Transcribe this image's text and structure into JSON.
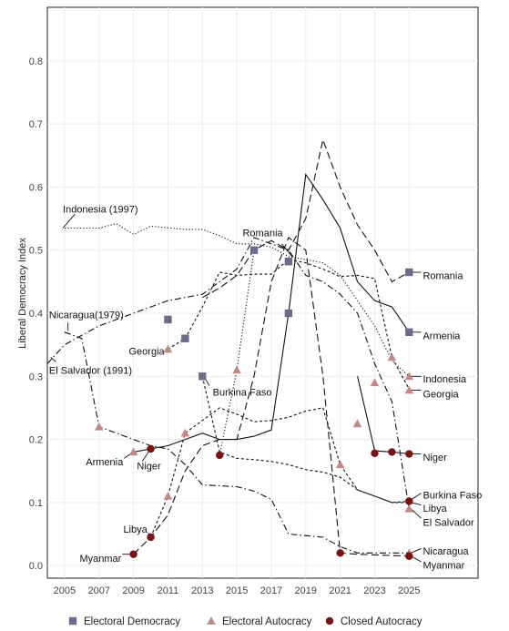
{
  "chart_data": {
    "type": "line",
    "ylabel": "Liberal Democracy Index",
    "xlabel": "",
    "xlim": [
      2004,
      2029
    ],
    "ylim": [
      -0.02,
      0.885
    ],
    "xticks": [
      "2005",
      "2007",
      "2009",
      "2011",
      "2013",
      "2015",
      "2017",
      "2019",
      "2021",
      "2023",
      "2025"
    ],
    "yticks": [
      "0.0",
      "0.1",
      "0.2",
      "0.3",
      "0.4",
      "0.5",
      "0.6",
      "0.7",
      "0.8"
    ],
    "grid": true,
    "legend_position": "bottom",
    "legend": [
      {
        "label": "Electoral Democracy",
        "marker": "square",
        "color": "#6b6b8c"
      },
      {
        "label": "Electoral Autocracy",
        "marker": "triangle",
        "color": "#c08a84"
      },
      {
        "label": "Closed Autocracy",
        "marker": "circle",
        "color": "#7a1414"
      }
    ],
    "series": [
      {
        "name": "Indonesia",
        "dash": "1.2,2.2",
        "points": [
          [
            2005,
            0.535
          ],
          [
            2007,
            0.535
          ],
          [
            2008,
            0.542
          ],
          [
            2009,
            0.525
          ],
          [
            2010,
            0.538
          ],
          [
            2012,
            0.533
          ],
          [
            2013,
            0.533
          ],
          [
            2014,
            0.523
          ],
          [
            2015,
            0.51
          ],
          [
            2016,
            0.51
          ],
          [
            2017,
            0.505
          ],
          [
            2018,
            0.49
          ],
          [
            2019,
            0.485
          ],
          [
            2020,
            0.48
          ],
          [
            2021,
            0.46
          ],
          [
            2022,
            0.42
          ],
          [
            2023,
            0.38
          ],
          [
            2024,
            0.325
          ],
          [
            2025,
            0.3
          ]
        ]
      },
      {
        "name": "Romania",
        "dash": "8,4",
        "points": [
          [
            2013,
            0.425
          ],
          [
            2014,
            0.44
          ],
          [
            2015,
            0.46
          ],
          [
            2016,
            0.5
          ],
          [
            2017,
            0.515
          ],
          [
            2018,
            0.5
          ],
          [
            2019,
            0.55
          ],
          [
            2020,
            0.675
          ],
          [
            2021,
            0.6
          ],
          [
            2022,
            0.54
          ],
          [
            2023,
            0.5
          ],
          [
            2024,
            0.45
          ],
          [
            2025,
            0.465
          ]
        ]
      },
      {
        "name": "Armenia",
        "dash": "",
        "points": [
          [
            2009,
            0.18
          ],
          [
            2011,
            0.19
          ],
          [
            2012,
            0.2
          ],
          [
            2013,
            0.21
          ],
          [
            2014,
            0.2
          ],
          [
            2015,
            0.2
          ],
          [
            2016,
            0.205
          ],
          [
            2017,
            0.215
          ],
          [
            2018,
            0.4
          ],
          [
            2019,
            0.62
          ],
          [
            2020,
            0.58
          ],
          [
            2021,
            0.535
          ],
          [
            2022,
            0.45
          ],
          [
            2023,
            0.42
          ],
          [
            2024,
            0.41
          ],
          [
            2025,
            0.37
          ]
        ]
      },
      {
        "name": "Georgia",
        "dash": "3,2.5",
        "points": [
          [
            2011,
            0.343
          ],
          [
            2012,
            0.36
          ],
          [
            2013,
            0.41
          ],
          [
            2014,
            0.465
          ],
          [
            2015,
            0.46
          ],
          [
            2016,
            0.462
          ],
          [
            2017,
            0.462
          ],
          [
            2018,
            0.485
          ],
          [
            2019,
            0.48
          ],
          [
            2020,
            0.47
          ],
          [
            2021,
            0.458
          ],
          [
            2022,
            0.46
          ],
          [
            2023,
            0.455
          ],
          [
            2024,
            0.33
          ],
          [
            2025,
            0.28
          ]
        ]
      },
      {
        "name": "Burkina Faso",
        "dash": "3,2.5",
        "points": [
          [
            2013,
            0.3
          ],
          [
            2014,
            0.18
          ],
          [
            2015,
            0.17
          ],
          [
            2016,
            0.168
          ],
          [
            2017,
            0.165
          ],
          [
            2018,
            0.16
          ],
          [
            2019,
            0.152
          ],
          [
            2020,
            0.148
          ],
          [
            2021,
            0.14
          ],
          [
            2022,
            0.12
          ],
          [
            2023,
            0.11
          ],
          [
            2024,
            0.1
          ],
          [
            2025,
            0.102
          ]
        ]
      },
      {
        "name": "El Salvador",
        "dash": "7,3,1.5,3",
        "points": [
          [
            2004,
            0.32
          ],
          [
            2005,
            0.35
          ],
          [
            2007,
            0.38
          ],
          [
            2009,
            0.4
          ],
          [
            2011,
            0.42
          ],
          [
            2013,
            0.43
          ],
          [
            2015,
            0.47
          ],
          [
            2016,
            0.52
          ],
          [
            2017,
            0.51
          ],
          [
            2018,
            0.5
          ],
          [
            2019,
            0.46
          ],
          [
            2020,
            0.45
          ],
          [
            2021,
            0.43
          ],
          [
            2022,
            0.4
          ],
          [
            2023,
            0.32
          ],
          [
            2024,
            0.26
          ],
          [
            2025,
            0.09
          ]
        ]
      },
      {
        "name": "Nicaragua",
        "dash": "7,3,1.5,3",
        "points": [
          [
            2005,
            0.37
          ],
          [
            2006,
            0.36
          ],
          [
            2007,
            0.22
          ],
          [
            2009,
            0.2
          ],
          [
            2010,
            0.19
          ],
          [
            2011,
            0.185
          ],
          [
            2012,
            0.16
          ],
          [
            2013,
            0.128
          ],
          [
            2015,
            0.125
          ],
          [
            2016,
            0.118
          ],
          [
            2017,
            0.105
          ],
          [
            2018,
            0.05
          ],
          [
            2020,
            0.045
          ],
          [
            2021,
            0.03
          ],
          [
            2022,
            0.02
          ],
          [
            2023,
            0.02
          ],
          [
            2025,
            0.02
          ]
        ]
      },
      {
        "name": "Libya",
        "dash": "3,2.5",
        "points": [
          [
            2010,
            0.045
          ],
          [
            2011,
            0.11
          ],
          [
            2012,
            0.21
          ],
          [
            2013,
            0.23
          ],
          [
            2014,
            0.25
          ],
          [
            2015,
            0.24
          ],
          [
            2016,
            0.228
          ],
          [
            2017,
            0.23
          ],
          [
            2018,
            0.235
          ],
          [
            2019,
            0.245
          ],
          [
            2020,
            0.25
          ],
          [
            2021,
            0.16
          ],
          [
            2022,
            0.12
          ],
          [
            2023,
            0.11
          ],
          [
            2024,
            0.1
          ],
          [
            2025,
            0.1
          ]
        ]
      },
      {
        "name": "Myanmar",
        "dash": "8,4",
        "points": [
          [
            2009,
            0.018
          ],
          [
            2010,
            0.045
          ],
          [
            2011,
            0.08
          ],
          [
            2012,
            0.15
          ],
          [
            2013,
            0.19
          ],
          [
            2014,
            0.2
          ],
          [
            2015,
            0.2
          ],
          [
            2016,
            0.3
          ],
          [
            2017,
            0.45
          ],
          [
            2018,
            0.52
          ],
          [
            2019,
            0.5
          ],
          [
            2020,
            0.3
          ],
          [
            2021,
            0.02
          ],
          [
            2022,
            0.018
          ],
          [
            2025,
            0.015
          ]
        ]
      },
      {
        "name": "Niger",
        "dash": "",
        "points": [
          [
            2022,
            0.3
          ],
          [
            2023,
            0.182
          ],
          [
            2024,
            0.18
          ],
          [
            2025,
            0.177
          ]
        ]
      },
      {
        "name": "Burkina Faso (2014 break)",
        "dash": "1.2,2.2",
        "points": [
          [
            2014,
            0.175
          ],
          [
            2015,
            0.31
          ],
          [
            2016,
            0.5
          ]
        ]
      }
    ],
    "markers": [
      {
        "year": 2011,
        "value": 0.39,
        "type": "square"
      },
      {
        "year": 2012,
        "value": 0.36,
        "type": "square"
      },
      {
        "year": 2013,
        "value": 0.3,
        "type": "square"
      },
      {
        "year": 2016,
        "value": 0.5,
        "type": "square"
      },
      {
        "year": 2018,
        "value": 0.482,
        "type": "square"
      },
      {
        "year": 2018,
        "value": 0.4,
        "type": "square"
      },
      {
        "year": 2025,
        "value": 0.465,
        "type": "square"
      },
      {
        "year": 2025,
        "value": 0.37,
        "type": "square"
      },
      {
        "year": 2007,
        "value": 0.22,
        "type": "triangle"
      },
      {
        "year": 2009,
        "value": 0.18,
        "type": "triangle"
      },
      {
        "year": 2011,
        "value": 0.343,
        "type": "triangle"
      },
      {
        "year": 2011,
        "value": 0.11,
        "type": "triangle"
      },
      {
        "year": 2012,
        "value": 0.21,
        "type": "triangle"
      },
      {
        "year": 2015,
        "value": 0.31,
        "type": "triangle"
      },
      {
        "year": 2021,
        "value": 0.16,
        "type": "triangle"
      },
      {
        "year": 2022,
        "value": 0.225,
        "type": "triangle"
      },
      {
        "year": 2023,
        "value": 0.29,
        "type": "triangle"
      },
      {
        "year": 2024,
        "value": 0.33,
        "type": "triangle"
      },
      {
        "year": 2025,
        "value": 0.3,
        "type": "triangle"
      },
      {
        "year": 2025,
        "value": 0.278,
        "type": "triangle"
      },
      {
        "year": 2025,
        "value": 0.09,
        "type": "triangle"
      },
      {
        "year": 2025,
        "value": 0.02,
        "type": "triangle"
      },
      {
        "year": 2009,
        "value": 0.018,
        "type": "circle"
      },
      {
        "year": 2010,
        "value": 0.045,
        "type": "circle"
      },
      {
        "year": 2010,
        "value": 0.185,
        "type": "circle"
      },
      {
        "year": 2014,
        "value": 0.175,
        "type": "circle"
      },
      {
        "year": 2021,
        "value": 0.02,
        "type": "circle"
      },
      {
        "year": 2023,
        "value": 0.178,
        "type": "circle"
      },
      {
        "year": 2024,
        "value": 0.18,
        "type": "circle"
      },
      {
        "year": 2025,
        "value": 0.177,
        "type": "circle"
      },
      {
        "year": 2025,
        "value": 0.102,
        "type": "circle"
      },
      {
        "year": 2025,
        "value": 0.015,
        "type": "circle"
      }
    ],
    "annotations": [
      {
        "text": "Indonesia (1997)",
        "year": 2004.9,
        "value": 0.565,
        "anchor": "start",
        "pointer": [
          [
            2005.6,
            0.557
          ],
          [
            2004.9,
            0.535
          ]
        ]
      },
      {
        "text": "Romania",
        "year": 2016.5,
        "value": 0.528,
        "anchor": "middle",
        "pointer": [
          [
            2017.6,
            0.51
          ],
          [
            2018.2,
            0.49
          ]
        ]
      },
      {
        "text": "Nicaragua(1979)",
        "year": 2004.1,
        "value": 0.398,
        "anchor": "start",
        "pointer": [
          [
            2005.2,
            0.385
          ],
          [
            2005.2,
            0.372
          ]
        ]
      },
      {
        "text": "Georgia",
        "year": 2010.8,
        "value": 0.34,
        "anchor": "end",
        "pointer": [
          [
            2010.85,
            0.343
          ],
          [
            2011,
            0.343
          ]
        ]
      },
      {
        "text": "El Salvador (1991)",
        "year": 2004.1,
        "value": 0.31,
        "anchor": "start",
        "pointer": [
          [
            2004.5,
            0.323
          ],
          [
            2004.2,
            0.33
          ]
        ]
      },
      {
        "text": "Burkina Faso",
        "year": 2013.6,
        "value": 0.275,
        "anchor": "start",
        "pointer": [
          [
            2013.4,
            0.285
          ],
          [
            2013.1,
            0.3
          ]
        ]
      },
      {
        "text": "Armenia",
        "year": 2008.4,
        "value": 0.165,
        "anchor": "end",
        "pointer": [
          [
            2008.45,
            0.17
          ],
          [
            2009,
            0.18
          ]
        ]
      },
      {
        "text": "Niger",
        "year": 2009.2,
        "value": 0.158,
        "anchor": "start",
        "pointer": [
          [
            2009.5,
            0.165
          ],
          [
            2010,
            0.185
          ]
        ]
      },
      {
        "text": "Libya",
        "year": 2009.8,
        "value": 0.058,
        "anchor": "end",
        "pointer": [
          [
            2009.85,
            0.052
          ],
          [
            2010,
            0.045
          ]
        ]
      },
      {
        "text": "Myanmar",
        "year": 2008.3,
        "value": 0.012,
        "anchor": "end",
        "pointer": [
          [
            2008.35,
            0.018
          ],
          [
            2009,
            0.018
          ]
        ]
      },
      {
        "text": "Romania",
        "year": 2025.8,
        "value": 0.46,
        "anchor": "start",
        "pointer": [
          [
            2025.7,
            0.465
          ],
          [
            2025.1,
            0.465
          ]
        ]
      },
      {
        "text": "Armenia",
        "year": 2025.8,
        "value": 0.365,
        "anchor": "start",
        "pointer": [
          [
            2025.7,
            0.37
          ],
          [
            2025.1,
            0.37
          ]
        ]
      },
      {
        "text": "Indonesia",
        "year": 2025.8,
        "value": 0.296,
        "anchor": "start",
        "pointer": [
          [
            2025.7,
            0.3
          ],
          [
            2025.1,
            0.3
          ]
        ]
      },
      {
        "text": "Georgia",
        "year": 2025.8,
        "value": 0.272,
        "anchor": "start",
        "pointer": [
          [
            2025.7,
            0.278
          ],
          [
            2025.1,
            0.278
          ]
        ]
      },
      {
        "text": "Niger",
        "year": 2025.8,
        "value": 0.172,
        "anchor": "start",
        "pointer": [
          [
            2025.7,
            0.177
          ],
          [
            2025.1,
            0.177
          ]
        ]
      },
      {
        "text": "Burkina Faso",
        "year": 2025.8,
        "value": 0.112,
        "anchor": "start",
        "pointer": [
          [
            2025.7,
            0.115
          ],
          [
            2025.1,
            0.104
          ]
        ]
      },
      {
        "text": "Libya",
        "year": 2025.8,
        "value": 0.091,
        "anchor": "start",
        "pointer": [
          [
            2025.7,
            0.096
          ],
          [
            2025.1,
            0.1
          ]
        ]
      },
      {
        "text": "El Salvador",
        "year": 2025.8,
        "value": 0.069,
        "anchor": "start",
        "pointer": [
          [
            2025.7,
            0.075
          ],
          [
            2025.1,
            0.09
          ]
        ]
      },
      {
        "text": "Nicaragua",
        "year": 2025.8,
        "value": 0.023,
        "anchor": "start",
        "pointer": [
          [
            2025.7,
            0.027
          ],
          [
            2025.1,
            0.02
          ]
        ]
      },
      {
        "text": "Myanmar",
        "year": 2025.8,
        "value": 0.001,
        "anchor": "start",
        "pointer": [
          [
            2025.7,
            0.006
          ],
          [
            2025.1,
            0.015
          ]
        ]
      }
    ]
  }
}
